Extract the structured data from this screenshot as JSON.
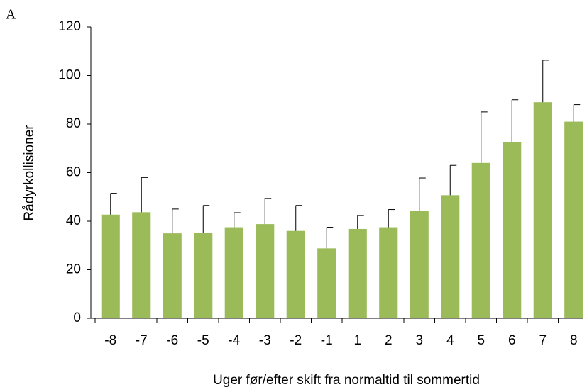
{
  "chart_data": {
    "type": "bar",
    "panel_label": "A",
    "y_label": "Rådyrkollisioner",
    "x_label": "Uger før/efter skift fra normaltid til sommertid",
    "categories": [
      "-8",
      "-7",
      "-6",
      "-5",
      "-4",
      "-3",
      "-2",
      "-1",
      "1",
      "2",
      "3",
      "4",
      "5",
      "6",
      "7",
      "8"
    ],
    "values": [
      42.7,
      43.7,
      35,
      35.3,
      37.5,
      38.8,
      36,
      28.8,
      36.8,
      37.5,
      44.2,
      50.7,
      64,
      72.7,
      89,
      81
    ],
    "errors": [
      8.8,
      14.3,
      10,
      11.2,
      6,
      10.5,
      10.5,
      8.7,
      5.5,
      7.3,
      13.6,
      12.3,
      21,
      17.3,
      17.3,
      7
    ],
    "color": "#9bbb59",
    "ylim": [
      0,
      120
    ],
    "yticks": [
      0,
      20,
      40,
      60,
      80,
      100,
      120
    ],
    "grid": false
  }
}
